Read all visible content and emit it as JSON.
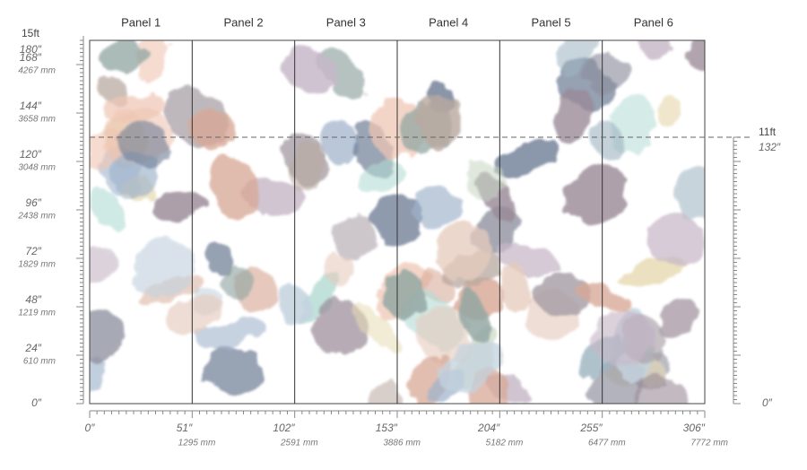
{
  "panels": [
    "Panel 1",
    "Panel 2",
    "Panel 3",
    "Panel 4",
    "Panel 5",
    "Panel 6"
  ],
  "left_ruler": {
    "top_label": "15ft",
    "marks": [
      {
        "inches": "180″"
      },
      {
        "inches": "168″",
        "mm": "4267 mm"
      },
      {
        "inches": "144″",
        "mm": "3658 mm"
      },
      {
        "inches": "120″",
        "mm": "3048 mm"
      },
      {
        "inches": "96″",
        "mm": "2438 mm"
      },
      {
        "inches": "72″",
        "mm": "1829 mm"
      },
      {
        "inches": "48″",
        "mm": "1219 mm"
      },
      {
        "inches": "24″",
        "mm": "610 mm"
      },
      {
        "inches": "0″"
      }
    ]
  },
  "right_ruler": {
    "top_label": "11ft",
    "top_inches": "132″",
    "bottom_inches": "0″"
  },
  "bottom_ruler": [
    {
      "inches": "0″"
    },
    {
      "inches": "51″",
      "mm": "1295 mm"
    },
    {
      "inches": "102″",
      "mm": "2591 mm"
    },
    {
      "inches": "153″",
      "mm": "3886 mm"
    },
    {
      "inches": "204″",
      "mm": "5182 mm"
    },
    {
      "inches": "255″",
      "mm": "6477 mm"
    },
    {
      "inches": "306″",
      "mm": "7772 mm"
    }
  ]
}
